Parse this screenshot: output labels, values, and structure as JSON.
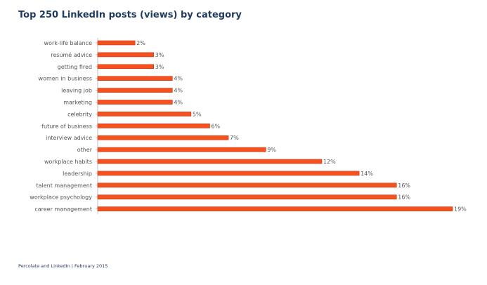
{
  "title": "Top 250 LinkedIn posts (views) by category",
  "footer": "Percolate and LinkedIn | February 2015",
  "colors": {
    "bar": "#f4511e",
    "bar_edge": "#c6340c",
    "title": "#1e3a5f",
    "axis": "#b0b0b0",
    "text": "#555555"
  },
  "chart_data": {
    "type": "bar",
    "orientation": "horizontal",
    "title": "Top 250 LinkedIn posts (views) by category",
    "categories": [
      "work-life balance",
      "resumé advice",
      "getting fired",
      "women in business",
      "leaving job",
      "marketing",
      "celebrity",
      "future of business",
      "interview advice",
      "other",
      "workplace habits",
      "leadership",
      "talent management",
      "workplace psychology",
      "career management"
    ],
    "values": [
      2,
      3,
      3,
      4,
      4,
      4,
      5,
      6,
      7,
      9,
      12,
      14,
      16,
      16,
      19
    ],
    "value_labels": [
      "2%",
      "3%",
      "3%",
      "4%",
      "4%",
      "4%",
      "5%",
      "6%",
      "7%",
      "9%",
      "12%",
      "14%",
      "16%",
      "16%",
      "19%"
    ],
    "unit": "%",
    "xlim": [
      0,
      19
    ],
    "grid": false,
    "legend": "none"
  }
}
